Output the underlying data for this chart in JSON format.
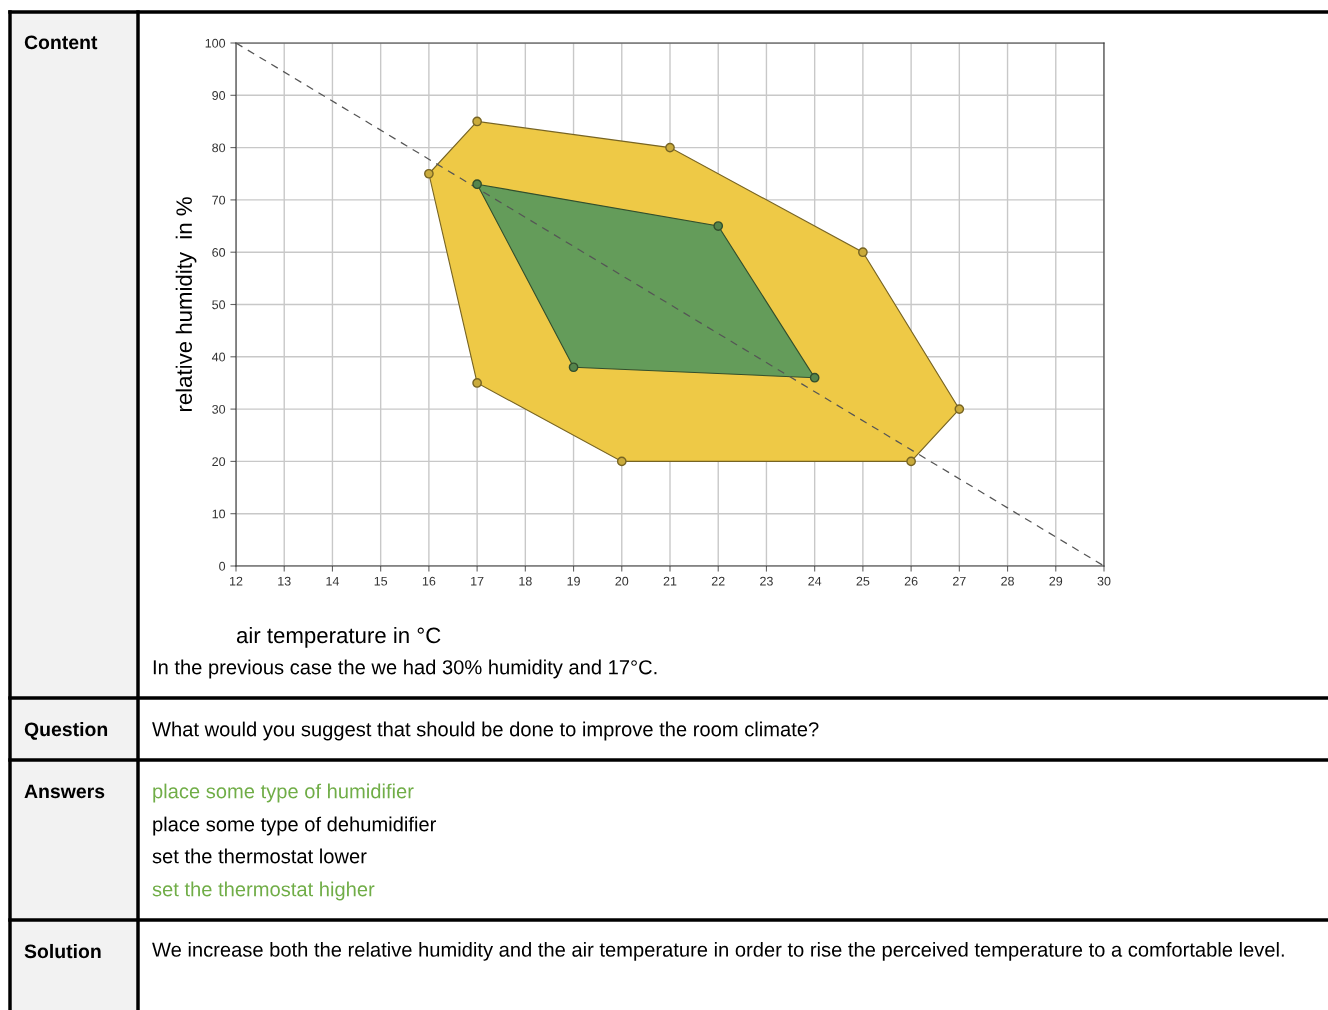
{
  "chart_data": {
    "type": "area",
    "xlabel": "air temperature in °C",
    "ylabel": "relative humidity  in %",
    "xlim": [
      12,
      30
    ],
    "ylim": [
      0,
      100
    ],
    "xticks": [
      12,
      13,
      14,
      15,
      16,
      17,
      18,
      19,
      20,
      21,
      22,
      23,
      24,
      25,
      26,
      27,
      28,
      29,
      30
    ],
    "yticks": [
      0,
      10,
      20,
      30,
      40,
      50,
      60,
      70,
      80,
      90,
      100
    ],
    "grid": true,
    "series": [
      {
        "color": "#eec946",
        "marker": "circle",
        "x": [
          16,
          17,
          21,
          25,
          27,
          26,
          20,
          17
        ],
        "values": [
          75,
          85,
          80,
          60,
          30,
          20,
          20,
          35
        ]
      },
      {
        "color": "#649c5a",
        "marker": "circle",
        "x": [
          17,
          22,
          24,
          19
        ],
        "values": [
          73,
          65,
          36,
          38
        ]
      },
      {
        "type": "line",
        "color": "#555555",
        "marker": "none",
        "line_style": "dashed",
        "x": [
          12,
          30
        ],
        "values": [
          100,
          0
        ]
      }
    ],
    "annotations": [
      "Content",
      "In the previous case the we had 30% humidity and 17°C.",
      "Question",
      "What would you suggest that should be done to improve the room climate?",
      "Answers",
      "place some type of humidifier",
      "place some type of dehumidifier",
      "set the thermostat lower",
      "set the thermostat higher",
      "Solution",
      "We increase both the relative humidity and the air temperature in order to rise the perceived temperature to a comfortable level."
    ]
  }
}
